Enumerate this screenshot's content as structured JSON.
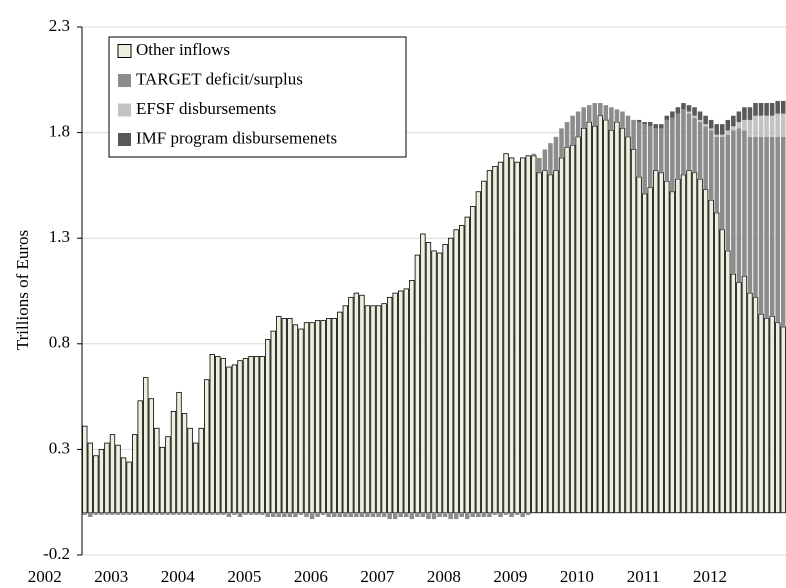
{
  "chart_data": {
    "type": "stacked_bar",
    "y_label": "Trillions of Euros",
    "ylim": [
      -0.2,
      2.3
    ],
    "yticks": [
      -0.2,
      0.3,
      0.8,
      1.3,
      1.8,
      2.3
    ],
    "grid": true,
    "legend": "top-left",
    "categories": [
      "2002",
      null,
      null,
      null,
      null,
      null,
      null,
      null,
      null,
      null,
      null,
      null,
      "2003",
      null,
      null,
      null,
      null,
      null,
      null,
      null,
      null,
      null,
      null,
      null,
      "2004",
      null,
      null,
      null,
      null,
      null,
      null,
      null,
      null,
      null,
      null,
      null,
      "2005",
      null,
      null,
      null,
      null,
      null,
      null,
      null,
      null,
      null,
      null,
      null,
      "2006",
      null,
      null,
      null,
      null,
      null,
      null,
      null,
      null,
      null,
      null,
      null,
      "2007",
      null,
      null,
      null,
      null,
      null,
      null,
      null,
      null,
      null,
      null,
      null,
      "2008",
      null,
      null,
      null,
      null,
      null,
      null,
      null,
      null,
      null,
      null,
      null,
      "2009",
      null,
      null,
      null,
      null,
      null,
      null,
      null,
      null,
      null,
      null,
      null,
      "2010",
      null,
      null,
      null,
      null,
      null,
      null,
      null,
      null,
      null,
      null,
      null,
      "2011",
      null,
      null,
      null,
      null,
      null,
      null,
      null,
      null,
      null,
      null,
      null,
      "2012",
      null,
      null,
      null,
      null,
      null,
      null
    ],
    "series": [
      {
        "name": "Other inflows",
        "color": "#efefdf",
        "values": [
          0.41,
          0.33,
          0.27,
          0.3,
          0.33,
          0.37,
          0.32,
          0.26,
          0.24,
          0.37,
          0.53,
          0.64,
          0.54,
          0.4,
          0.31,
          0.36,
          0.48,
          0.57,
          0.47,
          0.4,
          0.33,
          0.4,
          0.63,
          0.75,
          0.74,
          0.73,
          0.69,
          0.7,
          0.72,
          0.73,
          0.74,
          0.74,
          0.74,
          0.82,
          0.86,
          0.93,
          0.92,
          0.92,
          0.89,
          0.87,
          0.9,
          0.9,
          0.91,
          0.91,
          0.92,
          0.92,
          0.95,
          0.98,
          1.02,
          1.04,
          1.03,
          0.98,
          0.98,
          0.98,
          0.99,
          1.02,
          1.04,
          1.05,
          1.06,
          1.1,
          1.22,
          1.32,
          1.28,
          1.24,
          1.23,
          1.27,
          1.3,
          1.34,
          1.36,
          1.4,
          1.45,
          1.52,
          1.57,
          1.62,
          1.64,
          1.66,
          1.7,
          1.68,
          1.66,
          1.68,
          1.69,
          1.69,
          1.61,
          1.62,
          1.6,
          1.62,
          1.68,
          1.73,
          1.74,
          1.78,
          1.82,
          1.85,
          1.83,
          1.88,
          1.86,
          1.81,
          1.85,
          1.82,
          1.78,
          1.72,
          1.59,
          1.51,
          1.54,
          1.62,
          1.61,
          1.57,
          1.52,
          1.58,
          1.6,
          1.62,
          1.61,
          1.58,
          1.53,
          1.48,
          1.42,
          1.34,
          1.24,
          1.13,
          1.09,
          1.12,
          1.04,
          1.02,
          0.94,
          0.92,
          0.93,
          0.9,
          0.88
        ]
      },
      {
        "name": "TARGET deficit/surplus",
        "color": "#8c8c8c",
        "values": [
          -0.01,
          -0.02,
          -0.01,
          -0.01,
          -0.01,
          -0.01,
          -0.01,
          -0.01,
          -0.01,
          -0.01,
          -0.01,
          -0.01,
          -0.01,
          -0.01,
          -0.01,
          -0.01,
          -0.01,
          -0.01,
          -0.01,
          -0.01,
          -0.01,
          -0.01,
          -0.01,
          -0.01,
          -0.01,
          -0.01,
          -0.02,
          -0.01,
          -0.02,
          -0.01,
          -0.01,
          -0.01,
          -0.01,
          -0.02,
          -0.02,
          -0.02,
          -0.02,
          -0.02,
          -0.02,
          -0.01,
          -0.02,
          -0.03,
          -0.02,
          -0.01,
          -0.02,
          -0.02,
          -0.02,
          -0.02,
          -0.02,
          -0.02,
          -0.02,
          -0.02,
          -0.02,
          -0.02,
          -0.02,
          -0.03,
          -0.03,
          -0.02,
          -0.02,
          -0.03,
          -0.02,
          -0.02,
          -0.03,
          -0.03,
          -0.02,
          -0.02,
          -0.03,
          -0.03,
          -0.02,
          -0.03,
          -0.02,
          -0.02,
          -0.02,
          -0.02,
          -0.01,
          -0.02,
          -0.01,
          -0.02,
          -0.01,
          -0.02,
          -0.01,
          0.01,
          0.07,
          0.1,
          0.15,
          0.16,
          0.14,
          0.12,
          0.14,
          0.12,
          0.1,
          0.08,
          0.11,
          0.06,
          0.07,
          0.11,
          0.06,
          0.08,
          0.1,
          0.14,
          0.26,
          0.33,
          0.29,
          0.2,
          0.21,
          0.29,
          0.35,
          0.31,
          0.31,
          0.27,
          0.26,
          0.27,
          0.3,
          0.33,
          0.36,
          0.44,
          0.55,
          0.68,
          0.73,
          0.69,
          0.74,
          0.76,
          0.84,
          0.86,
          0.85,
          0.88,
          0.9
        ]
      },
      {
        "name": "EFSF disbursements",
        "color": "#c3c3c3",
        "values": [
          0,
          0,
          0,
          0,
          0,
          0,
          0,
          0,
          0,
          0,
          0,
          0,
          0,
          0,
          0,
          0,
          0,
          0,
          0,
          0,
          0,
          0,
          0,
          0,
          0,
          0,
          0,
          0,
          0,
          0,
          0,
          0,
          0,
          0,
          0,
          0,
          0,
          0,
          0,
          0,
          0,
          0,
          0,
          0,
          0,
          0,
          0,
          0,
          0,
          0,
          0,
          0,
          0,
          0,
          0,
          0,
          0,
          0,
          0,
          0,
          0,
          0,
          0,
          0,
          0,
          0,
          0,
          0,
          0,
          0,
          0,
          0,
          0,
          0,
          0,
          0,
          0,
          0,
          0,
          0,
          0,
          0,
          0,
          0,
          0,
          0,
          0,
          0,
          0,
          0,
          0,
          0,
          0,
          0,
          0,
          0,
          0,
          0,
          0,
          0,
          0,
          0,
          0,
          0,
          0,
          0,
          0,
          0,
          0,
          0.01,
          0.01,
          0.01,
          0.01,
          0.01,
          0.01,
          0.01,
          0.02,
          0.02,
          0.03,
          0.05,
          0.08,
          0.1,
          0.1,
          0.1,
          0.1,
          0.11,
          0.11
        ]
      },
      {
        "name": "IMF program disbursemenets",
        "color": "#595959",
        "values": [
          0,
          0,
          0,
          0,
          0,
          0,
          0,
          0,
          0,
          0,
          0,
          0,
          0,
          0,
          0,
          0,
          0,
          0,
          0,
          0,
          0,
          0,
          0,
          0,
          0,
          0,
          0,
          0,
          0,
          0,
          0,
          0,
          0,
          0,
          0,
          0,
          0,
          0,
          0,
          0,
          0,
          0,
          0,
          0,
          0,
          0,
          0,
          0,
          0,
          0,
          0,
          0,
          0,
          0,
          0,
          0,
          0,
          0,
          0,
          0,
          0,
          0,
          0,
          0,
          0,
          0,
          0,
          0,
          0,
          0,
          0,
          0,
          0,
          0,
          0,
          0,
          0,
          0,
          0,
          0,
          0,
          0,
          0,
          0,
          0,
          0,
          0,
          0,
          0,
          0,
          0,
          0,
          0,
          0,
          0,
          0,
          0,
          0,
          0,
          0,
          0.01,
          0.01,
          0.02,
          0.02,
          0.02,
          0.02,
          0.03,
          0.03,
          0.03,
          0.03,
          0.04,
          0.04,
          0.04,
          0.04,
          0.05,
          0.05,
          0.05,
          0.05,
          0.05,
          0.06,
          0.06,
          0.06,
          0.06,
          0.06,
          0.06,
          0.06,
          0.06
        ]
      }
    ]
  }
}
